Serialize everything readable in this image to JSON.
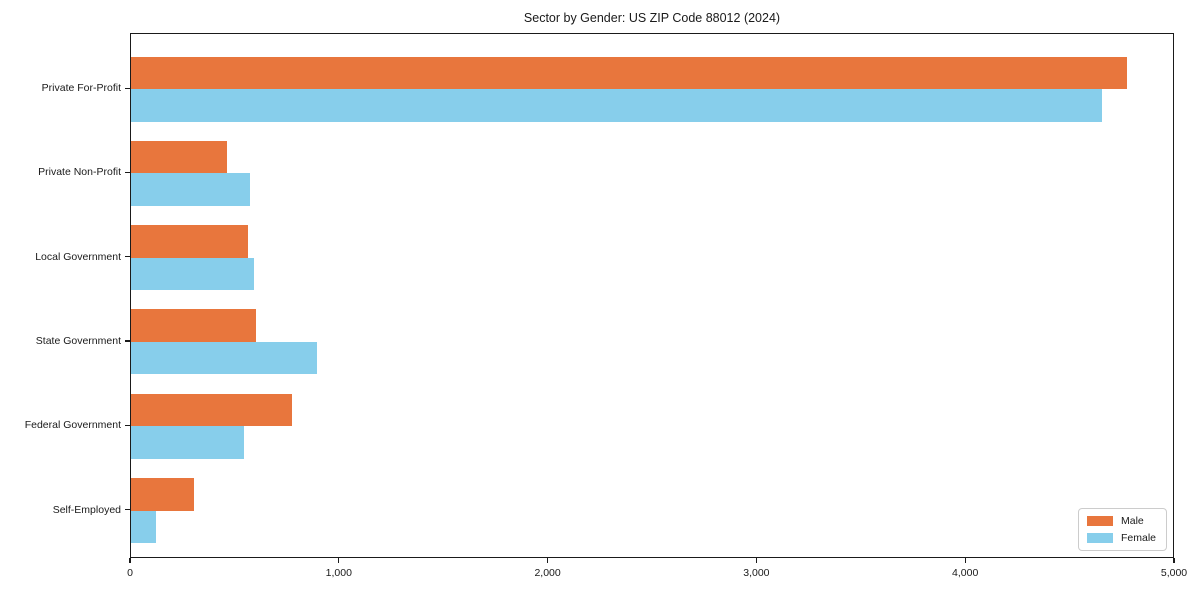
{
  "title": "Sector by Gender: US ZIP Code 88012 (2024)",
  "chart_data": {
    "type": "bar",
    "orientation": "horizontal",
    "title": "Sector by Gender: US ZIP Code 88012 (2024)",
    "categories": [
      "Private For-Profit",
      "Private Non-Profit",
      "Local Government",
      "State Government",
      "Federal Government",
      "Self-Employed"
    ],
    "series": [
      {
        "name": "Male",
        "color": "#e8763d",
        "values": [
          4770,
          460,
          560,
          600,
          770,
          300
        ]
      },
      {
        "name": "Female",
        "color": "#87ceeb",
        "values": [
          4650,
          570,
          590,
          890,
          540,
          120
        ]
      }
    ],
    "xlim": [
      0,
      5000
    ],
    "x_ticks": [
      {
        "value": 0,
        "label": "0"
      },
      {
        "value": 1000,
        "label": "1,000"
      },
      {
        "value": 2000,
        "label": "2,000"
      },
      {
        "value": 3000,
        "label": "3,000"
      },
      {
        "value": 4000,
        "label": "4,000"
      },
      {
        "value": 5000,
        "label": "5,000"
      }
    ],
    "xlabel": "",
    "ylabel": "",
    "grid": false,
    "legend_position": "lower right",
    "axis_color": "#1a1a1a",
    "background_color": "#ffffff"
  }
}
